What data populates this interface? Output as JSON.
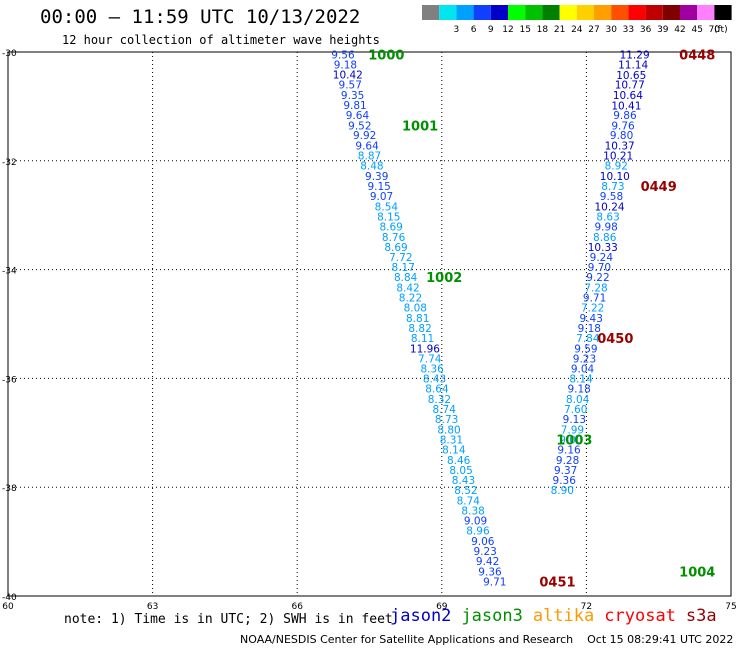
{
  "header": {
    "title": "00:00 – 11:59 UTC 10/13/2022",
    "subtitle": "12 hour collection of altimeter wave heights"
  },
  "color_scale": {
    "unit": "(ft)",
    "bins": [
      {
        "label": "",
        "color": "#808080"
      },
      {
        "label": "3",
        "color": "#00e5ee"
      },
      {
        "label": "6",
        "color": "#00a0ff"
      },
      {
        "label": "9",
        "color": "#1040ff"
      },
      {
        "label": "12",
        "color": "#0000c8"
      },
      {
        "label": "15",
        "color": "#00ff00"
      },
      {
        "label": "18",
        "color": "#00c000"
      },
      {
        "label": "21",
        "color": "#008000"
      },
      {
        "label": "24",
        "color": "#ffff00"
      },
      {
        "label": "27",
        "color": "#ffd000"
      },
      {
        "label": "30",
        "color": "#ffa000"
      },
      {
        "label": "33",
        "color": "#ff5000"
      },
      {
        "label": "36",
        "color": "#ff0000"
      },
      {
        "label": "39",
        "color": "#c00000"
      },
      {
        "label": "42",
        "color": "#800000"
      },
      {
        "label": "45",
        "color": "#a000a0"
      },
      {
        "label": "70",
        "color": "#ff80ff"
      },
      {
        "label": "",
        "color": "#000000"
      }
    ]
  },
  "note": "note: 1) Time is in UTC; 2) SWH is in feet",
  "credit": "NOAA/NESDIS Center for Satellite Applications and Research    Oct 15 08:29:41 UTC 2022",
  "legend": [
    {
      "label": "jason2",
      "color": "#0000c8"
    },
    {
      "label": "jason3",
      "color": "#009000"
    },
    {
      "label": "altika",
      "color": "#ff9900"
    },
    {
      "label": "cryosat",
      "color": "#ff0000"
    },
    {
      "label": "s3a",
      "color": "#990000"
    }
  ],
  "chart_data": {
    "type": "scatter",
    "xlim": [
      60,
      75
    ],
    "ylim": [
      -40,
      -30
    ],
    "x_ticks": [
      "60",
      "63",
      "66",
      "69",
      "72",
      "75"
    ],
    "y_ticks": [
      "-30",
      "-32",
      "-34",
      "-36",
      "-38",
      "-40"
    ],
    "grid": true,
    "colors": {
      "c9": "#1040ff",
      "c12": "#0000c8",
      "c6": "#00a0ff",
      "green": "#009000",
      "darkred": "#990000"
    },
    "tracks": [
      {
        "name": "jason3-left",
        "points": [
          {
            "lon": 66.95,
            "lat": -30.05,
            "v": "9.56",
            "c": "c9"
          },
          {
            "lon": 67.0,
            "lat": -30.23,
            "v": "9.18",
            "c": "c9"
          },
          {
            "lon": 67.05,
            "lat": -30.41,
            "v": "10.42",
            "c": "c12"
          },
          {
            "lon": 67.1,
            "lat": -30.6,
            "v": "9.57",
            "c": "c9"
          },
          {
            "lon": 67.15,
            "lat": -30.79,
            "v": "9.35",
            "c": "c9"
          },
          {
            "lon": 67.2,
            "lat": -30.97,
            "v": "9.81",
            "c": "c9"
          },
          {
            "lon": 67.25,
            "lat": -31.16,
            "v": "9.64",
            "c": "c9"
          },
          {
            "lon": 67.3,
            "lat": -31.35,
            "v": "9.52",
            "c": "c9"
          },
          {
            "lon": 67.4,
            "lat": -31.53,
            "v": "9.92",
            "c": "c9"
          },
          {
            "lon": 67.45,
            "lat": -31.72,
            "v": "9.64",
            "c": "c9"
          },
          {
            "lon": 67.5,
            "lat": -31.9,
            "v": "8.87",
            "c": "c6"
          },
          {
            "lon": 67.55,
            "lat": -32.09,
            "v": "8.48",
            "c": "c6"
          },
          {
            "lon": 67.65,
            "lat": -32.28,
            "v": "9.39",
            "c": "c9"
          },
          {
            "lon": 67.7,
            "lat": -32.46,
            "v": "9.15",
            "c": "c9"
          },
          {
            "lon": 67.75,
            "lat": -32.65,
            "v": "9.07",
            "c": "c9"
          },
          {
            "lon": 67.85,
            "lat": -32.84,
            "v": "8.54",
            "c": "c6"
          },
          {
            "lon": 67.9,
            "lat": -33.02,
            "v": "8.15",
            "c": "c6"
          },
          {
            "lon": 67.95,
            "lat": -33.21,
            "v": "8.69",
            "c": "c6"
          },
          {
            "lon": 68.0,
            "lat": -33.4,
            "v": "8.76",
            "c": "c6"
          },
          {
            "lon": 68.05,
            "lat": -33.58,
            "v": "8.69",
            "c": "c6"
          },
          {
            "lon": 68.15,
            "lat": -33.77,
            "v": "7.72",
            "c": "c6"
          },
          {
            "lon": 68.2,
            "lat": -33.95,
            "v": "8.17",
            "c": "c6"
          },
          {
            "lon": 68.25,
            "lat": -34.14,
            "v": "8.84",
            "c": "c6"
          },
          {
            "lon": 68.3,
            "lat": -34.33,
            "v": "8.42",
            "c": "c6"
          },
          {
            "lon": 68.35,
            "lat": -34.51,
            "v": "8.22",
            "c": "c6"
          },
          {
            "lon": 68.45,
            "lat": -34.7,
            "v": "8.08",
            "c": "c6"
          },
          {
            "lon": 68.5,
            "lat": -34.89,
            "v": "8.81",
            "c": "c6"
          },
          {
            "lon": 68.55,
            "lat": -35.07,
            "v": "8.82",
            "c": "c6"
          },
          {
            "lon": 68.6,
            "lat": -35.26,
            "v": "8.11",
            "c": "c6"
          },
          {
            "lon": 68.65,
            "lat": -35.45,
            "v": "11.96",
            "c": "c12"
          },
          {
            "lon": 68.75,
            "lat": -35.63,
            "v": "7.74",
            "c": "c6"
          },
          {
            "lon": 68.8,
            "lat": -35.82,
            "v": "8.36",
            "c": "c6"
          },
          {
            "lon": 68.85,
            "lat": -36.0,
            "v": "8.43",
            "c": "c6"
          },
          {
            "lon": 68.9,
            "lat": -36.19,
            "v": "8.64",
            "c": "c6"
          },
          {
            "lon": 68.95,
            "lat": -36.38,
            "v": "8.32",
            "c": "c6"
          },
          {
            "lon": 69.05,
            "lat": -36.56,
            "v": "8.74",
            "c": "c6"
          },
          {
            "lon": 69.1,
            "lat": -36.75,
            "v": "8.73",
            "c": "c6"
          },
          {
            "lon": 69.15,
            "lat": -36.94,
            "v": "8.80",
            "c": "c6"
          },
          {
            "lon": 69.2,
            "lat": -37.12,
            "v": "8.31",
            "c": "c6"
          },
          {
            "lon": 69.25,
            "lat": -37.31,
            "v": "8.14",
            "c": "c6"
          },
          {
            "lon": 69.35,
            "lat": -37.5,
            "v": "8.46",
            "c": "c6"
          },
          {
            "lon": 69.4,
            "lat": -37.68,
            "v": "8.05",
            "c": "c6"
          },
          {
            "lon": 69.45,
            "lat": -37.87,
            "v": "8.43",
            "c": "c6"
          },
          {
            "lon": 69.5,
            "lat": -38.05,
            "v": "8.52",
            "c": "c6"
          },
          {
            "lon": 69.55,
            "lat": -38.24,
            "v": "8.74",
            "c": "c6"
          },
          {
            "lon": 69.65,
            "lat": -38.43,
            "v": "8.38",
            "c": "c6"
          },
          {
            "lon": 69.7,
            "lat": -38.61,
            "v": "9.09",
            "c": "c9"
          },
          {
            "lon": 69.75,
            "lat": -38.8,
            "v": "8.96",
            "c": "c6"
          },
          {
            "lon": 69.85,
            "lat": -38.99,
            "v": "9.06",
            "c": "c9"
          },
          {
            "lon": 69.9,
            "lat": -39.17,
            "v": "9.23",
            "c": "c9"
          },
          {
            "lon": 69.95,
            "lat": -39.36,
            "v": "9.42",
            "c": "c9"
          },
          {
            "lon": 70.0,
            "lat": -39.55,
            "v": "9.36",
            "c": "c9"
          },
          {
            "lon": 70.1,
            "lat": -39.73,
            "v": "9.71",
            "c": "c9"
          }
        ]
      },
      {
        "name": "cryosat-right",
        "points": [
          {
            "lon": 73.0,
            "lat": -30.05,
            "v": "11.29",
            "c": "c12"
          },
          {
            "lon": 72.97,
            "lat": -30.23,
            "v": "11.14",
            "c": "c12"
          },
          {
            "lon": 72.93,
            "lat": -30.42,
            "v": "10.65",
            "c": "c12"
          },
          {
            "lon": 72.9,
            "lat": -30.6,
            "v": "10.77",
            "c": "c12"
          },
          {
            "lon": 72.86,
            "lat": -30.79,
            "v": "10.64",
            "c": "c12"
          },
          {
            "lon": 72.83,
            "lat": -30.98,
            "v": "10.41",
            "c": "c12"
          },
          {
            "lon": 72.8,
            "lat": -31.16,
            "v": "9.86",
            "c": "c9"
          },
          {
            "lon": 72.76,
            "lat": -31.35,
            "v": "9.76",
            "c": "c9"
          },
          {
            "lon": 72.73,
            "lat": -31.53,
            "v": "9.80",
            "c": "c9"
          },
          {
            "lon": 72.69,
            "lat": -31.72,
            "v": "10.37",
            "c": "c12"
          },
          {
            "lon": 72.66,
            "lat": -31.9,
            "v": "10.21",
            "c": "c12"
          },
          {
            "lon": 72.62,
            "lat": -32.09,
            "v": "8.92",
            "c": "c6"
          },
          {
            "lon": 72.59,
            "lat": -32.28,
            "v": "10.10",
            "c": "c12"
          },
          {
            "lon": 72.55,
            "lat": -32.46,
            "v": "8.73",
            "c": "c6"
          },
          {
            "lon": 72.52,
            "lat": -32.65,
            "v": "9.58",
            "c": "c9"
          },
          {
            "lon": 72.48,
            "lat": -32.84,
            "v": "10.24",
            "c": "c12"
          },
          {
            "lon": 72.45,
            "lat": -33.02,
            "v": "8.63",
            "c": "c6"
          },
          {
            "lon": 72.41,
            "lat": -33.21,
            "v": "9.98",
            "c": "c9"
          },
          {
            "lon": 72.38,
            "lat": -33.4,
            "v": "8.86",
            "c": "c6"
          },
          {
            "lon": 72.34,
            "lat": -33.58,
            "v": "10.33",
            "c": "c12"
          },
          {
            "lon": 72.31,
            "lat": -33.77,
            "v": "9.24",
            "c": "c9"
          },
          {
            "lon": 72.27,
            "lat": -33.95,
            "v": "9.70",
            "c": "c9"
          },
          {
            "lon": 72.24,
            "lat": -34.14,
            "v": "9.22",
            "c": "c9"
          },
          {
            "lon": 72.2,
            "lat": -34.33,
            "v": "7.28",
            "c": "c6"
          },
          {
            "lon": 72.17,
            "lat": -34.51,
            "v": "9.71",
            "c": "c9"
          },
          {
            "lon": 72.13,
            "lat": -34.7,
            "v": "7.22",
            "c": "c6"
          },
          {
            "lon": 72.1,
            "lat": -34.89,
            "v": "9.43",
            "c": "c9"
          },
          {
            "lon": 72.06,
            "lat": -35.07,
            "v": "9.18",
            "c": "c9"
          },
          {
            "lon": 72.03,
            "lat": -35.26,
            "v": "7.84",
            "c": "c6"
          },
          {
            "lon": 71.99,
            "lat": -35.45,
            "v": "9.59",
            "c": "c9"
          },
          {
            "lon": 71.96,
            "lat": -35.63,
            "v": "9.23",
            "c": "c9"
          },
          {
            "lon": 71.92,
            "lat": -35.82,
            "v": "9.04",
            "c": "c9"
          },
          {
            "lon": 71.89,
            "lat": -36.0,
            "v": "8.14",
            "c": "c6"
          },
          {
            "lon": 71.85,
            "lat": -36.19,
            "v": "9.18",
            "c": "c9"
          },
          {
            "lon": 71.82,
            "lat": -36.38,
            "v": "8.04",
            "c": "c6"
          },
          {
            "lon": 71.78,
            "lat": -36.56,
            "v": "7.60",
            "c": "c6"
          },
          {
            "lon": 71.75,
            "lat": -36.75,
            "v": "9.13",
            "c": "c9"
          },
          {
            "lon": 71.71,
            "lat": -36.94,
            "v": "7.99",
            "c": "c6"
          },
          {
            "lon": 71.68,
            "lat": -37.12,
            "v": "9.00",
            "c": "c6"
          },
          {
            "lon": 71.64,
            "lat": -37.31,
            "v": "9.16",
            "c": "c9"
          },
          {
            "lon": 71.61,
            "lat": -37.5,
            "v": "9.28",
            "c": "c9"
          },
          {
            "lon": 71.57,
            "lat": -37.68,
            "v": "9.37",
            "c": "c9"
          },
          {
            "lon": 71.54,
            "lat": -37.87,
            "v": "9.36",
            "c": "c9"
          },
          {
            "lon": 71.5,
            "lat": -38.05,
            "v": "8.90",
            "c": "c6"
          }
        ]
      }
    ],
    "time_labels": [
      {
        "text": "1000",
        "lon": 67.85,
        "lat": -30.05,
        "c": "green"
      },
      {
        "text": "1001",
        "lon": 68.55,
        "lat": -31.35,
        "c": "green"
      },
      {
        "text": "1002",
        "lon": 69.05,
        "lat": -34.14,
        "c": "green"
      },
      {
        "text": "1003",
        "lon": 71.75,
        "lat": -37.12,
        "c": "green"
      },
      {
        "text": "1004",
        "lon": 74.3,
        "lat": -39.55,
        "c": "green"
      },
      {
        "text": "0448",
        "lon": 74.3,
        "lat": -30.05,
        "c": "darkred"
      },
      {
        "text": "0449",
        "lon": 73.5,
        "lat": -32.46,
        "c": "darkred"
      },
      {
        "text": "0450",
        "lon": 72.6,
        "lat": -35.26,
        "c": "darkred"
      },
      {
        "text": "0451",
        "lon": 71.4,
        "lat": -39.73,
        "c": "darkred"
      }
    ]
  }
}
